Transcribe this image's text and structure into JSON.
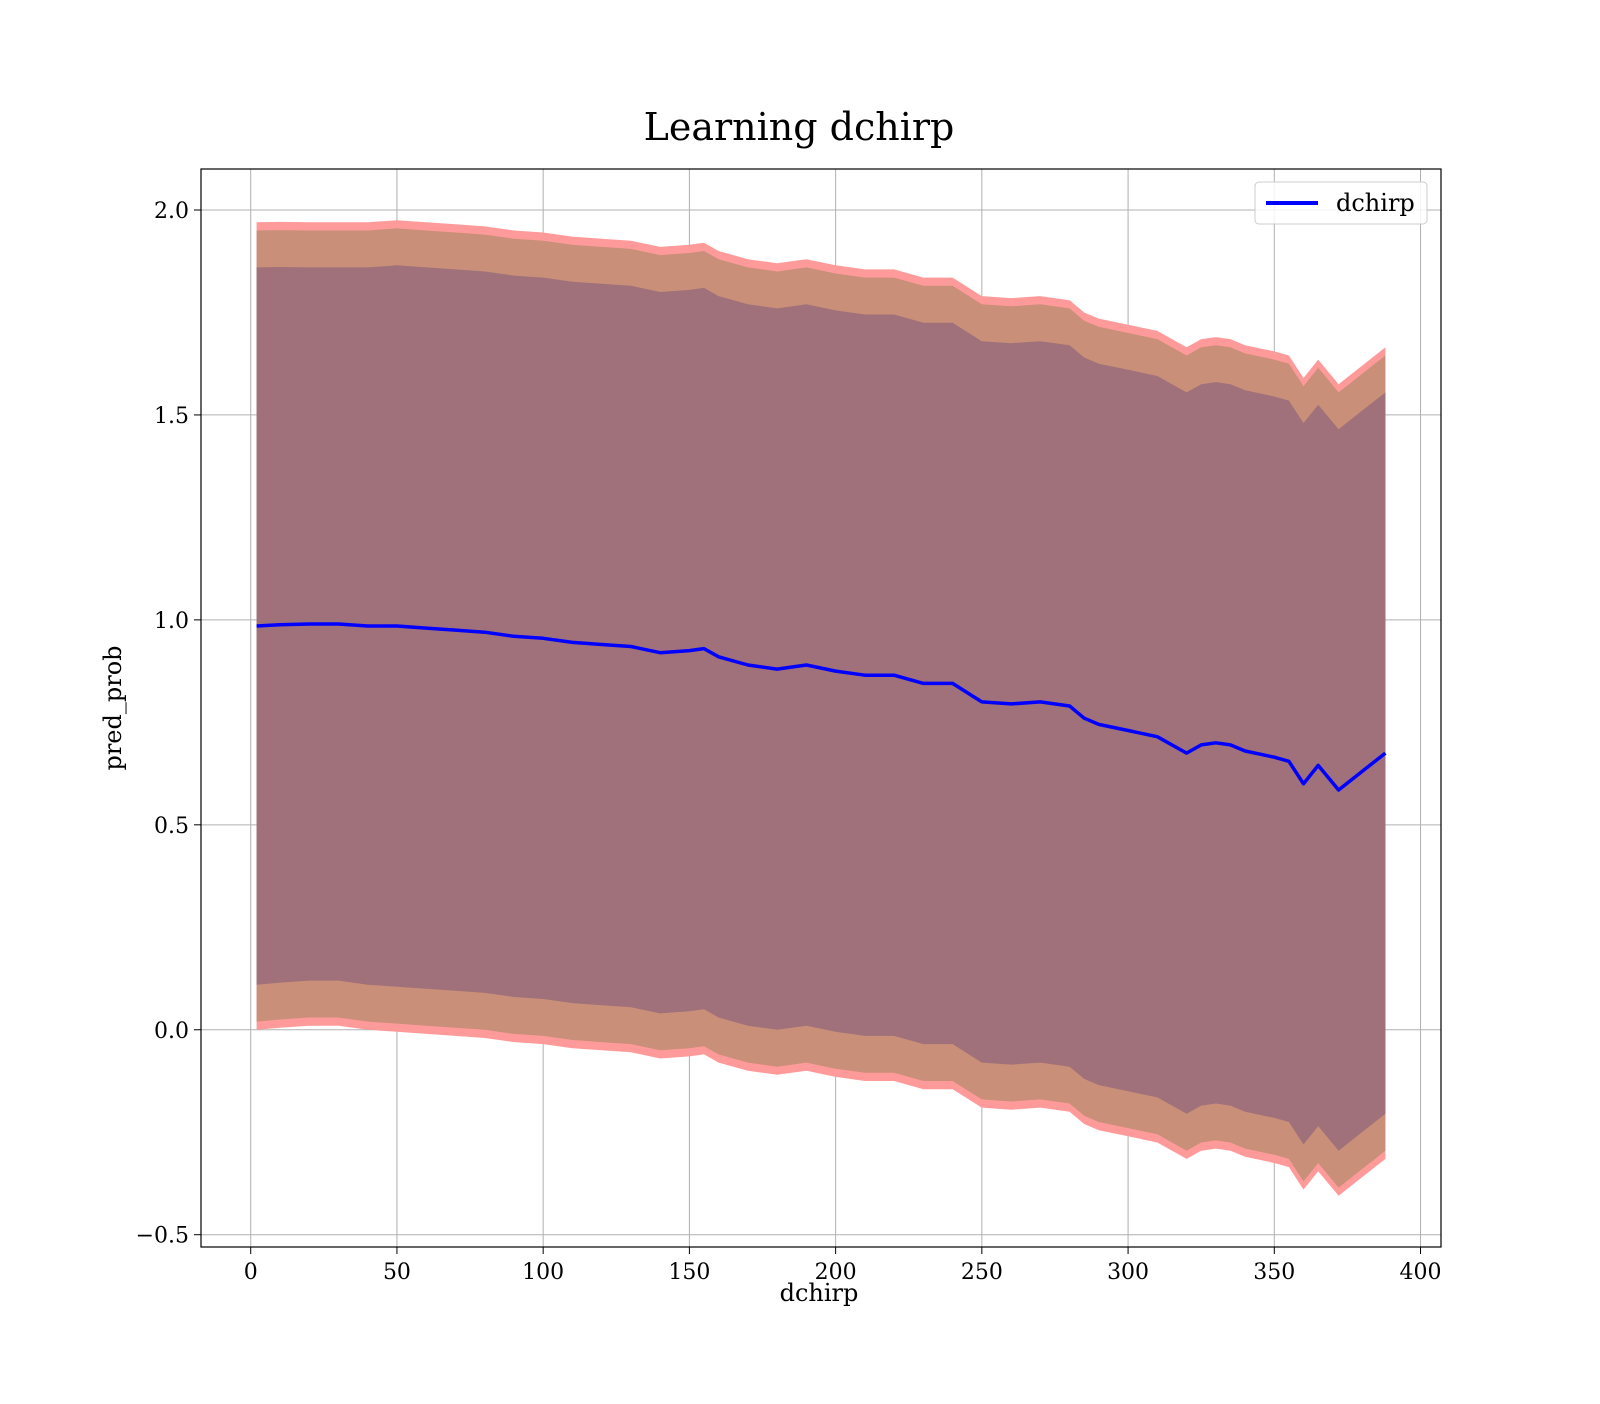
{
  "chart_data": {
    "type": "line",
    "title": "Learning dchirp",
    "xlabel": "dchirp",
    "ylabel": "pred_prob",
    "xlim": [
      -17,
      407
    ],
    "ylim": [
      -0.53,
      2.1
    ],
    "xticks": [
      0,
      50,
      100,
      150,
      200,
      250,
      300,
      350,
      400
    ],
    "yticks": [
      -0.5,
      0.0,
      0.5,
      1.0,
      1.5,
      2.0
    ],
    "xtick_labels": [
      "0",
      "50",
      "100",
      "150",
      "200",
      "250",
      "300",
      "350",
      "400"
    ],
    "ytick_labels": [
      "−0.5",
      "0.0",
      "0.5",
      "1.0",
      "1.5",
      "2.0"
    ],
    "grid": true,
    "legend": {
      "position": "top-right",
      "entries": [
        "dchirp"
      ]
    },
    "colors": {
      "line": "#0000ff",
      "band_outer": "#ff9a9a",
      "band_middle": "#c98f78",
      "band_inner": "#a0717a"
    },
    "series": [
      {
        "name": "dchirp",
        "x": [
          2,
          10,
          20,
          30,
          40,
          50,
          60,
          70,
          80,
          90,
          100,
          110,
          120,
          130,
          140,
          150,
          155,
          160,
          170,
          180,
          190,
          200,
          210,
          220,
          230,
          240,
          250,
          260,
          270,
          280,
          285,
          290,
          300,
          310,
          320,
          325,
          330,
          335,
          340,
          350,
          355,
          360,
          365,
          372,
          380,
          388
        ],
        "y": [
          0.985,
          0.988,
          0.99,
          0.99,
          0.985,
          0.985,
          0.98,
          0.975,
          0.97,
          0.96,
          0.955,
          0.945,
          0.94,
          0.935,
          0.92,
          0.925,
          0.93,
          0.91,
          0.89,
          0.88,
          0.89,
          0.875,
          0.865,
          0.865,
          0.845,
          0.845,
          0.8,
          0.795,
          0.8,
          0.79,
          0.76,
          0.745,
          0.73,
          0.715,
          0.675,
          0.695,
          0.7,
          0.695,
          0.68,
          0.665,
          0.655,
          0.6,
          0.645,
          0.585,
          0.63,
          0.675
        ]
      }
    ],
    "bands": [
      {
        "x": [
          2,
          10,
          20,
          30,
          40,
          50,
          60,
          70,
          80,
          90,
          100,
          110,
          120,
          130,
          140,
          150,
          155,
          160,
          170,
          180,
          190,
          200,
          210,
          220,
          230,
          240,
          250,
          260,
          270,
          280,
          285,
          290,
          300,
          310,
          320,
          325,
          330,
          335,
          340,
          350,
          355,
          360,
          365,
          372,
          380,
          388
        ],
        "lower": [
          0.0,
          0.005,
          0.01,
          0.01,
          0.0,
          -0.005,
          -0.01,
          -0.015,
          -0.02,
          -0.03,
          -0.035,
          -0.045,
          -0.05,
          -0.055,
          -0.07,
          -0.065,
          -0.06,
          -0.08,
          -0.1,
          -0.11,
          -0.1,
          -0.115,
          -0.125,
          -0.125,
          -0.145,
          -0.145,
          -0.19,
          -0.195,
          -0.19,
          -0.2,
          -0.23,
          -0.245,
          -0.26,
          -0.275,
          -0.315,
          -0.295,
          -0.29,
          -0.295,
          -0.31,
          -0.325,
          -0.335,
          -0.39,
          -0.345,
          -0.405,
          -0.36,
          -0.315
        ],
        "upper": [
          1.97,
          1.971,
          1.97,
          1.97,
          1.97,
          1.975,
          1.97,
          1.965,
          1.96,
          1.95,
          1.945,
          1.935,
          1.93,
          1.925,
          1.91,
          1.915,
          1.92,
          1.9,
          1.88,
          1.87,
          1.88,
          1.865,
          1.855,
          1.855,
          1.835,
          1.835,
          1.79,
          1.785,
          1.79,
          1.78,
          1.75,
          1.735,
          1.72,
          1.705,
          1.665,
          1.685,
          1.69,
          1.685,
          1.67,
          1.655,
          1.645,
          1.59,
          1.635,
          1.575,
          1.62,
          1.665
        ]
      },
      {
        "x": [
          2,
          10,
          20,
          30,
          40,
          50,
          60,
          70,
          80,
          90,
          100,
          110,
          120,
          130,
          140,
          150,
          155,
          160,
          170,
          180,
          190,
          200,
          210,
          220,
          230,
          240,
          250,
          260,
          270,
          280,
          285,
          290,
          300,
          310,
          320,
          325,
          330,
          335,
          340,
          350,
          355,
          360,
          365,
          372,
          380,
          388
        ],
        "lower": [
          0.02,
          0.025,
          0.03,
          0.03,
          0.02,
          0.015,
          0.01,
          0.005,
          0.0,
          -0.01,
          -0.015,
          -0.025,
          -0.03,
          -0.035,
          -0.05,
          -0.045,
          -0.04,
          -0.06,
          -0.08,
          -0.09,
          -0.08,
          -0.095,
          -0.105,
          -0.105,
          -0.125,
          -0.125,
          -0.17,
          -0.175,
          -0.17,
          -0.18,
          -0.21,
          -0.225,
          -0.24,
          -0.255,
          -0.295,
          -0.275,
          -0.27,
          -0.275,
          -0.29,
          -0.305,
          -0.315,
          -0.37,
          -0.325,
          -0.385,
          -0.34,
          -0.295
        ],
        "upper": [
          1.95,
          1.951,
          1.95,
          1.95,
          1.95,
          1.955,
          1.95,
          1.945,
          1.94,
          1.93,
          1.925,
          1.915,
          1.91,
          1.905,
          1.89,
          1.895,
          1.9,
          1.88,
          1.86,
          1.85,
          1.86,
          1.845,
          1.835,
          1.835,
          1.815,
          1.815,
          1.77,
          1.765,
          1.77,
          1.76,
          1.73,
          1.715,
          1.7,
          1.685,
          1.645,
          1.665,
          1.67,
          1.665,
          1.65,
          1.635,
          1.625,
          1.57,
          1.615,
          1.555,
          1.6,
          1.645
        ]
      },
      {
        "x": [
          2,
          10,
          20,
          30,
          40,
          50,
          60,
          70,
          80,
          90,
          100,
          110,
          120,
          130,
          140,
          150,
          155,
          160,
          170,
          180,
          190,
          200,
          210,
          220,
          230,
          240,
          250,
          260,
          270,
          280,
          285,
          290,
          300,
          310,
          320,
          325,
          330,
          335,
          340,
          350,
          355,
          360,
          365,
          372,
          380,
          388
        ],
        "lower": [
          0.11,
          0.115,
          0.12,
          0.12,
          0.11,
          0.105,
          0.1,
          0.095,
          0.09,
          0.08,
          0.075,
          0.065,
          0.06,
          0.055,
          0.04,
          0.045,
          0.05,
          0.03,
          0.01,
          0.0,
          0.01,
          -0.005,
          -0.015,
          -0.015,
          -0.035,
          -0.035,
          -0.08,
          -0.085,
          -0.08,
          -0.09,
          -0.12,
          -0.135,
          -0.15,
          -0.165,
          -0.205,
          -0.185,
          -0.18,
          -0.185,
          -0.2,
          -0.215,
          -0.225,
          -0.28,
          -0.235,
          -0.295,
          -0.25,
          -0.205
        ],
        "upper": [
          1.86,
          1.861,
          1.86,
          1.86,
          1.86,
          1.865,
          1.86,
          1.855,
          1.85,
          1.84,
          1.835,
          1.825,
          1.82,
          1.815,
          1.8,
          1.805,
          1.81,
          1.79,
          1.77,
          1.76,
          1.77,
          1.755,
          1.745,
          1.745,
          1.725,
          1.725,
          1.68,
          1.675,
          1.68,
          1.67,
          1.64,
          1.625,
          1.61,
          1.595,
          1.555,
          1.575,
          1.58,
          1.575,
          1.56,
          1.545,
          1.535,
          1.48,
          1.525,
          1.465,
          1.51,
          1.555
        ]
      }
    ]
  }
}
